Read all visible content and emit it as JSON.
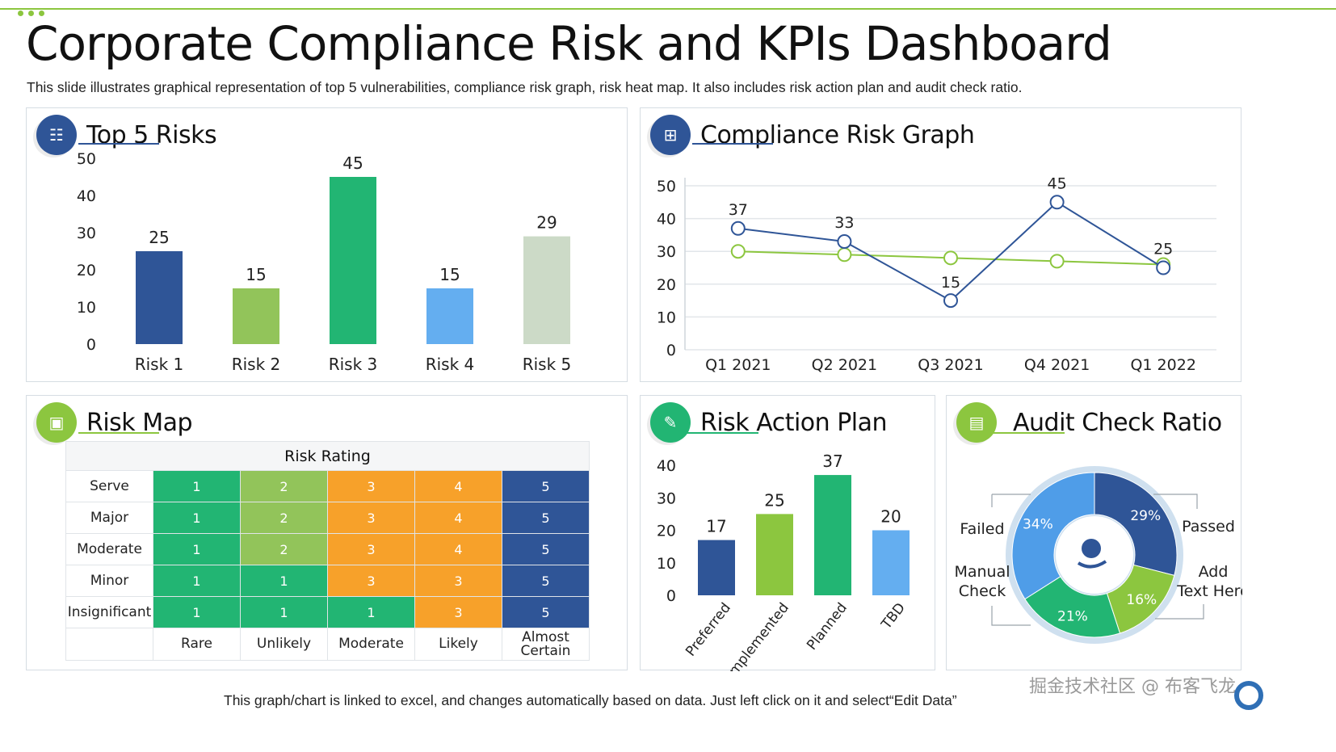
{
  "header": {
    "title": "Corporate Compliance Risk and KPIs Dashboard",
    "subtitle": "This slide illustrates graphical representation of top 5 vulnerabilities, compliance risk graph, risk heat map.  It also includes risk action plan and audit check ratio."
  },
  "panels": {
    "top5": {
      "title": "Top 5 Risks",
      "icon": "document-list-icon"
    },
    "compliance": {
      "title": "Compliance Risk Graph",
      "icon": "analytics-chart-icon"
    },
    "riskmap": {
      "title": "Risk Map",
      "icon": "map-icon"
    },
    "action": {
      "title": "Risk Action Plan",
      "icon": "chart-edit-icon"
    },
    "audit": {
      "title": "Audit Check Ratio",
      "icon": "clipboard-icon"
    }
  },
  "colors": {
    "dark_blue": "#2f5597",
    "light_green": "#8cc63f",
    "green": "#22b573",
    "light_blue": "#64aef0",
    "pale_green": "#ccdac7",
    "orange": "#f7a12a",
    "rule_green": "#8cc63f"
  },
  "chart_data": [
    {
      "id": "top5",
      "type": "bar",
      "categories": [
        "Risk 1",
        "Risk 2",
        "Risk 3",
        "Risk 4",
        "Risk 5"
      ],
      "values": [
        25,
        15,
        45,
        15,
        29
      ],
      "colors": [
        "#2f5597",
        "#92c45a",
        "#22b573",
        "#64aef0",
        "#ccdac7"
      ],
      "yticks": [
        "0",
        "10",
        "20",
        "30",
        "40",
        "50"
      ],
      "ylim": [
        0,
        50
      ],
      "grid": false
    },
    {
      "id": "compliance",
      "type": "line",
      "categories": [
        "Q1 2021",
        "Q2 2021",
        "Q3 2021",
        "Q4 2021",
        "Q1 2022"
      ],
      "series": [
        {
          "values": [
            37,
            33,
            15,
            45,
            25
          ],
          "color": "#2f5597",
          "labels": true
        },
        {
          "values": [
            30,
            29,
            28,
            27,
            26
          ],
          "color": "#8cc63f",
          "labels": false
        }
      ],
      "yticks": [
        "0",
        "10",
        "20",
        "30",
        "40",
        "50"
      ],
      "ylim": [
        0,
        50
      ],
      "grid": true
    },
    {
      "id": "action",
      "type": "bar",
      "categories": [
        "Preferred",
        "Implemented",
        "Planned",
        "TBD"
      ],
      "values": [
        17,
        25,
        37,
        20
      ],
      "colors": [
        "#2f5597",
        "#8cc63f",
        "#22b573",
        "#64aef0"
      ],
      "yticks": [
        "0",
        "10",
        "20",
        "30",
        "40"
      ],
      "ylim": [
        0,
        40
      ],
      "grid": false
    },
    {
      "id": "audit",
      "type": "pie",
      "slices": [
        {
          "label": "29%",
          "value": 29,
          "color": "#2f5597"
        },
        {
          "label": "16%",
          "value": 16,
          "color": "#8cc63f"
        },
        {
          "label": "21%",
          "value": 21,
          "color": "#22b573"
        },
        {
          "label": "34%",
          "value": 34,
          "color": "#4f9de8"
        }
      ],
      "callouts": {
        "failed": "Failed",
        "passed": "Passed",
        "manual": "Manual Check",
        "add": "Add Text Here"
      },
      "center_icon": "pie-chart-hand-icon"
    }
  ],
  "riskmap": {
    "header": "Risk Rating",
    "rows": [
      {
        "label": "Serve",
        "cells": [
          "1",
          "2",
          "3",
          "4",
          "5"
        ]
      },
      {
        "label": "Major",
        "cells": [
          "1",
          "2",
          "3",
          "4",
          "5"
        ]
      },
      {
        "label": "Moderate",
        "cells": [
          "1",
          "2",
          "3",
          "4",
          "5"
        ]
      },
      {
        "label": "Minor",
        "cells": [
          "1",
          "1",
          "3",
          "3",
          "5"
        ]
      },
      {
        "label": "Insignificant",
        "cells": [
          "1",
          "1",
          "1",
          "3",
          "5"
        ]
      }
    ],
    "cell_colors": [
      [
        "#22b573",
        "#92c45a",
        "#f7a12a",
        "#f7a12a",
        "#2f5597"
      ],
      [
        "#22b573",
        "#92c45a",
        "#f7a12a",
        "#f7a12a",
        "#2f5597"
      ],
      [
        "#22b573",
        "#92c45a",
        "#f7a12a",
        "#f7a12a",
        "#2f5597"
      ],
      [
        "#22b573",
        "#22b573",
        "#f7a12a",
        "#f7a12a",
        "#2f5597"
      ],
      [
        "#22b573",
        "#22b573",
        "#22b573",
        "#f7a12a",
        "#2f5597"
      ]
    ],
    "columns": [
      "Rare",
      "Unlikely",
      "Moderate",
      "Likely",
      "Almost Certain"
    ]
  },
  "footer": {
    "note": "This graph/chart is linked to excel, and changes automatically based on data.  Just left click on it and select“Edit Data”",
    "watermark": "掘金技术社区 @ 布客飞龙"
  }
}
